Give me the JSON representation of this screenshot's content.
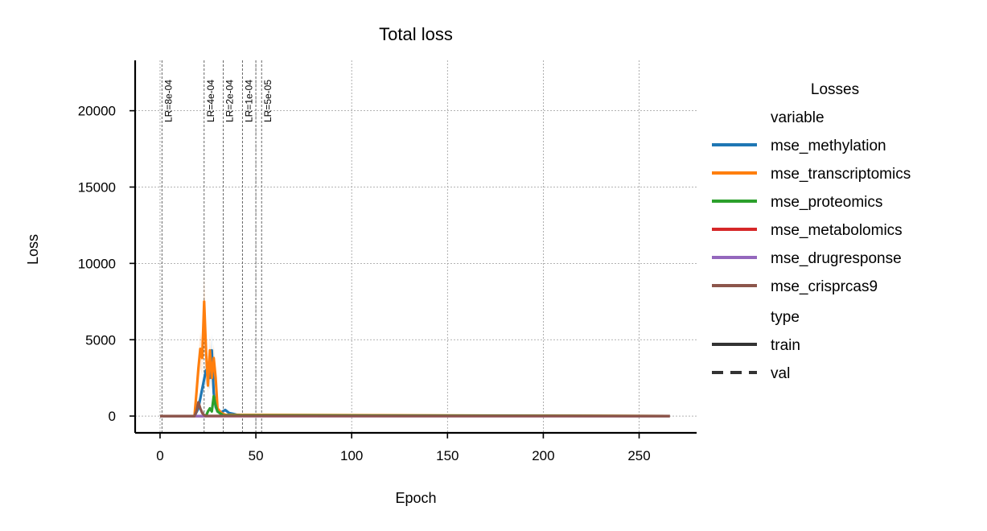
{
  "chart_data": {
    "type": "line",
    "title": "Total loss",
    "xlabel": "Epoch",
    "ylabel": "Loss",
    "xlim": [
      -13,
      280
    ],
    "ylim": [
      -1100,
      23300
    ],
    "xticks": [
      0,
      50,
      100,
      150,
      200,
      250
    ],
    "yticks": [
      0,
      5000,
      10000,
      15000,
      20000
    ],
    "grid": true,
    "legend": {
      "title": "Losses",
      "placement": "right",
      "variable_heading": "variable",
      "type_heading": "type",
      "variables": [
        {
          "name": "mse_methylation",
          "color": "#1f77b4"
        },
        {
          "name": "mse_transcriptomics",
          "color": "#ff7f0e"
        },
        {
          "name": "mse_proteomics",
          "color": "#2ca02c"
        },
        {
          "name": "mse_metabolomics",
          "color": "#d62728"
        },
        {
          "name": "mse_drugresponse",
          "color": "#9467bd"
        },
        {
          "name": "mse_crisprcas9",
          "color": "#8c564b"
        }
      ],
      "types": [
        {
          "name": "train",
          "dash": "solid"
        },
        {
          "name": "val",
          "dash": "dashed"
        }
      ]
    },
    "lr_markers": [
      {
        "epoch": 1,
        "label": "LR=8e-04"
      },
      {
        "epoch": 23,
        "label": "LR=4e-04"
      },
      {
        "epoch": 33,
        "label": "LR=2e-04"
      },
      {
        "epoch": 43,
        "label": "LR=1e-04"
      },
      {
        "epoch": 53,
        "label": "LR=5e-05"
      }
    ],
    "lr_marker_extra_epochs": [
      50
    ],
    "series": [
      {
        "name": "mse_methylation",
        "color": "#1f77b4",
        "x": [
          0,
          18,
          20,
          22,
          24,
          26,
          27,
          28,
          29,
          30,
          32,
          34,
          36,
          38,
          40,
          45,
          266
        ],
        "y": [
          0,
          0,
          500,
          1800,
          3000,
          2500,
          4300,
          1500,
          600,
          300,
          250,
          400,
          200,
          150,
          80,
          20,
          0
        ]
      },
      {
        "name": "mse_transcriptomics",
        "color": "#ff7f0e",
        "x": [
          0,
          18,
          19,
          20,
          21,
          22,
          23,
          24,
          25,
          26,
          27,
          28,
          29,
          30,
          32,
          34,
          266
        ],
        "y": [
          0,
          0,
          1500,
          3100,
          4400,
          3800,
          7500,
          4300,
          2000,
          4300,
          2500,
          3800,
          2500,
          500,
          200,
          80,
          0
        ]
      },
      {
        "name": "mse_proteomics",
        "color": "#2ca02c",
        "x": [
          0,
          24,
          25,
          26,
          27,
          28,
          29,
          30,
          31,
          33,
          266
        ],
        "y": [
          0,
          0,
          300,
          500,
          300,
          1300,
          700,
          300,
          200,
          50,
          0
        ]
      },
      {
        "name": "mse_metabolomics",
        "color": "#d62728",
        "x": [
          0,
          266
        ],
        "y": [
          0,
          0
        ]
      },
      {
        "name": "mse_drugresponse",
        "color": "#9467bd",
        "x": [
          0,
          266
        ],
        "y": [
          0,
          0
        ]
      },
      {
        "name": "mse_crisprcas9",
        "color": "#8c564b",
        "x": [
          0,
          18,
          19,
          20,
          21,
          22,
          23,
          24,
          266
        ],
        "y": [
          0,
          0,
          300,
          900,
          500,
          200,
          60,
          10,
          0
        ]
      }
    ]
  }
}
